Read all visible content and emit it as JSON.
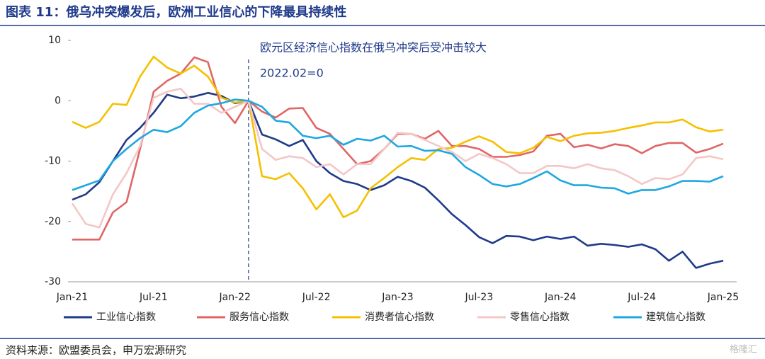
{
  "chart_data": {
    "type": "line",
    "title": "图表 11：俄乌冲突爆发后，欧洲工业信心的下降最具持续性",
    "annotation": "欧元区经济信心指数在俄乌冲突后受冲击较大",
    "annotation_sub": "2022.02=0",
    "source": "资料来源：欧盟委员会，申万宏源研究",
    "watermark": "格隆汇",
    "categories": [
      "Jan-21",
      null,
      null,
      null,
      null,
      null,
      "Jul-21",
      null,
      null,
      null,
      null,
      null,
      "Jan-22",
      null,
      null,
      null,
      null,
      null,
      "Jul-22",
      null,
      null,
      null,
      null,
      null,
      "Jan-23",
      null,
      null,
      null,
      null,
      null,
      "Jul-23",
      null,
      null,
      null,
      null,
      null,
      "Jan-24",
      null,
      null,
      null,
      null,
      null,
      "Jul-24",
      null,
      null,
      null,
      null,
      null,
      "Jan-25"
    ],
    "ylim": [
      -30,
      10
    ],
    "yticks": [
      -30,
      -20,
      -10,
      0,
      10
    ],
    "legend": "bottom",
    "series": [
      {
        "name": "工业信心指数",
        "color": "#1f3a8a",
        "values": [
          -16.4,
          -15.5,
          -13.5,
          -10,
          -6.5,
          -4.5,
          -2,
          1.0,
          0.4,
          0.7,
          1.3,
          0.8,
          -0.4,
          0,
          -5.6,
          -6.4,
          -7.5,
          -6.5,
          -10,
          -12,
          -13.3,
          -13.8,
          -14.8,
          -14,
          -12.6,
          -13.3,
          -14.4,
          -16.5,
          -18.8,
          -20.6,
          -22.6,
          -23.6,
          -22.4,
          -22.5,
          -23.1,
          -22.5,
          -22.9,
          -22.5,
          -24,
          -23.7,
          -23.9,
          -24.2,
          -23.8,
          -24.6,
          -26.5,
          -25,
          -27.7,
          -27,
          -26.5
        ]
      },
      {
        "name": "服务信心指数",
        "color": "#e06666",
        "values": [
          -23,
          -23,
          -23,
          -18.5,
          -16.8,
          -8,
          1.5,
          3.3,
          4.5,
          7.2,
          6.4,
          -1,
          -3.7,
          0,
          -1.8,
          -2.8,
          -1.3,
          -1.2,
          -4.5,
          -5.5,
          -8,
          -10.5,
          -10,
          -8,
          -5.5,
          -5.5,
          -6.3,
          -5,
          -7.5,
          -7.5,
          -8,
          -9.3,
          -9.3,
          -9,
          -8.4,
          -5.8,
          -5.5,
          -7.7,
          -7.3,
          -7.9,
          -7.2,
          -7.5,
          -8.7,
          -7.5,
          -7,
          -7,
          -8.6,
          -8,
          -7.1
        ]
      },
      {
        "name": "消费者信心指数",
        "color": "#f5c000",
        "values": [
          -3.5,
          -4.5,
          -3.5,
          -0.5,
          -0.7,
          4,
          7.3,
          5.5,
          4.5,
          5.8,
          4,
          0.5,
          -0.3,
          0,
          -12.5,
          -13,
          -12,
          -14.5,
          -18,
          -15.5,
          -19.3,
          -18.2,
          -14.5,
          -12.8,
          -11,
          -9.5,
          -9.8,
          -8,
          -7.8,
          -6.8,
          -5.9,
          -6.8,
          -8.5,
          -8.7,
          -7.8,
          -6,
          -6.7,
          -5.8,
          -5.4,
          -5.3,
          -5,
          -4.5,
          -4.1,
          -3.6,
          -3.6,
          -3.1,
          -4.4,
          -5.1,
          -4.8
        ]
      },
      {
        "name": "零售信心指数",
        "color": "#f4c7c7",
        "values": [
          -17,
          -20.4,
          -21,
          -15.5,
          -12,
          -7.5,
          0.5,
          1.5,
          2,
          -0.5,
          -0.5,
          -2,
          -1,
          0,
          -8,
          -9.8,
          -9.2,
          -9.5,
          -11,
          -10.5,
          -12.2,
          -10.5,
          -10.5,
          -8,
          -5.3,
          -5.5,
          -6.5,
          -7.5,
          -8.5,
          -10,
          -8.8,
          -9.5,
          -10.5,
          -12,
          -12,
          -10.8,
          -10.8,
          -11.2,
          -10.5,
          -11.2,
          -11.5,
          -12.5,
          -13.8,
          -12.8,
          -13,
          -12.2,
          -9.5,
          -9.2,
          -9.7
        ]
      },
      {
        "name": "建筑信心指数",
        "color": "#1ea7e1",
        "values": [
          -14.8,
          -14,
          -13.2,
          -10,
          -8,
          -6.2,
          -4.8,
          -5.2,
          -4.2,
          -2,
          -0.8,
          -0.4,
          0.2,
          0,
          -1,
          -3.3,
          -3.6,
          -5.8,
          -6.2,
          -5.8,
          -7.3,
          -6.3,
          -6.6,
          -5.8,
          -7.6,
          -7.5,
          -8.3,
          -8.2,
          -8.8,
          -11,
          -12.3,
          -13.8,
          -14.2,
          -13.8,
          -12.8,
          -11.7,
          -13.2,
          -14,
          -14,
          -14.4,
          -14.5,
          -15.4,
          -14.8,
          -14.8,
          -14.2,
          -13.3,
          -13.3,
          -13.4,
          -12.5
        ]
      }
    ]
  }
}
